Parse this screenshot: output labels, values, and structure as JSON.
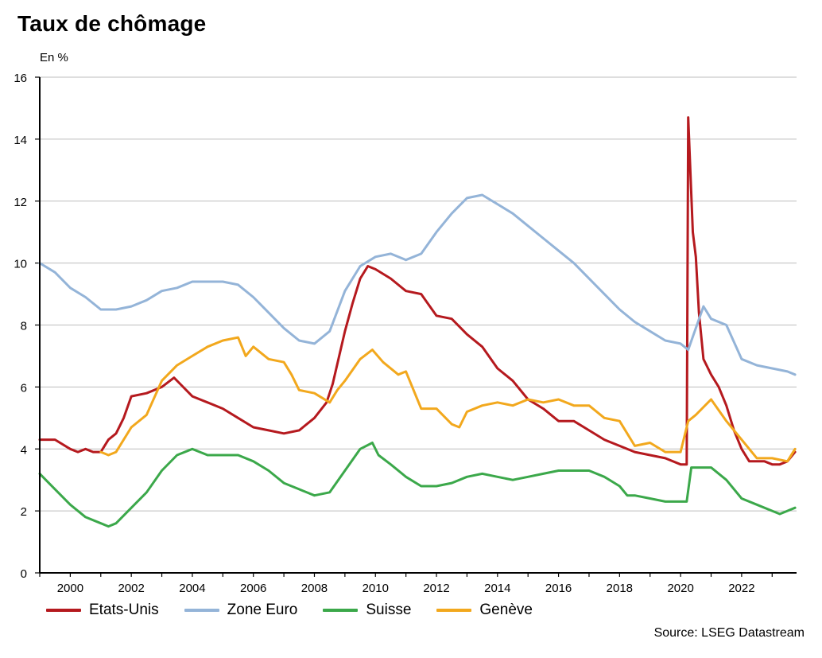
{
  "title": "Taux de chômage",
  "unit_label": "En %",
  "source": "Source: LSEG Datastream",
  "chart_data": {
    "type": "line",
    "title": "Taux de chômage",
    "ylabel": "En %",
    "xlim": [
      1999.0,
      2023.8
    ],
    "ylim": [
      0,
      16
    ],
    "y_ticks": [
      "0",
      "2",
      "4",
      "6",
      "8",
      "10",
      "12",
      "14",
      "16"
    ],
    "x_ticks": [
      "2000",
      "2002",
      "2004",
      "2006",
      "2008",
      "2010",
      "2012",
      "2014",
      "2016",
      "2018",
      "2020",
      "2022"
    ],
    "grid": "horizontal",
    "legend_position": "bottom",
    "series": [
      {
        "name": "Etats-Unis",
        "color": "#b5191e",
        "points": [
          [
            1999.0,
            4.3
          ],
          [
            1999.5,
            4.3
          ],
          [
            2000.0,
            4.0
          ],
          [
            2000.25,
            3.9
          ],
          [
            2000.5,
            4.0
          ],
          [
            2000.75,
            3.9
          ],
          [
            2001.0,
            3.9
          ],
          [
            2001.25,
            4.3
          ],
          [
            2001.5,
            4.5
          ],
          [
            2001.75,
            5.0
          ],
          [
            2002.0,
            5.7
          ],
          [
            2002.5,
            5.8
          ],
          [
            2003.0,
            6.0
          ],
          [
            2003.4,
            6.3
          ],
          [
            2003.6,
            6.1
          ],
          [
            2004.0,
            5.7
          ],
          [
            2004.5,
            5.5
          ],
          [
            2005.0,
            5.3
          ],
          [
            2005.5,
            5.0
          ],
          [
            2006.0,
            4.7
          ],
          [
            2006.5,
            4.6
          ],
          [
            2007.0,
            4.5
          ],
          [
            2007.5,
            4.6
          ],
          [
            2008.0,
            5.0
          ],
          [
            2008.4,
            5.5
          ],
          [
            2008.6,
            6.1
          ],
          [
            2009.0,
            7.8
          ],
          [
            2009.25,
            8.7
          ],
          [
            2009.5,
            9.5
          ],
          [
            2009.75,
            9.9
          ],
          [
            2010.0,
            9.8
          ],
          [
            2010.5,
            9.5
          ],
          [
            2011.0,
            9.1
          ],
          [
            2011.5,
            9.0
          ],
          [
            2012.0,
            8.3
          ],
          [
            2012.5,
            8.2
          ],
          [
            2013.0,
            7.7
          ],
          [
            2013.5,
            7.3
          ],
          [
            2014.0,
            6.6
          ],
          [
            2014.5,
            6.2
          ],
          [
            2015.0,
            5.6
          ],
          [
            2015.5,
            5.3
          ],
          [
            2016.0,
            4.9
          ],
          [
            2016.5,
            4.9
          ],
          [
            2017.0,
            4.6
          ],
          [
            2017.5,
            4.3
          ],
          [
            2018.0,
            4.1
          ],
          [
            2018.5,
            3.9
          ],
          [
            2019.0,
            3.8
          ],
          [
            2019.5,
            3.7
          ],
          [
            2020.0,
            3.5
          ],
          [
            2020.2,
            3.5
          ],
          [
            2020.25,
            14.7
          ],
          [
            2020.4,
            11.0
          ],
          [
            2020.5,
            10.2
          ],
          [
            2020.6,
            8.4
          ],
          [
            2020.75,
            6.9
          ],
          [
            2021.0,
            6.4
          ],
          [
            2021.25,
            6.0
          ],
          [
            2021.5,
            5.4
          ],
          [
            2021.75,
            4.6
          ],
          [
            2022.0,
            4.0
          ],
          [
            2022.25,
            3.6
          ],
          [
            2022.5,
            3.6
          ],
          [
            2022.75,
            3.6
          ],
          [
            2023.0,
            3.5
          ],
          [
            2023.25,
            3.5
          ],
          [
            2023.5,
            3.6
          ],
          [
            2023.75,
            3.9
          ]
        ]
      },
      {
        "name": "Zone Euro",
        "color": "#94b4d8",
        "points": [
          [
            1999.0,
            10.0
          ],
          [
            1999.5,
            9.7
          ],
          [
            2000.0,
            9.2
          ],
          [
            2000.5,
            8.9
          ],
          [
            2001.0,
            8.5
          ],
          [
            2001.5,
            8.5
          ],
          [
            2002.0,
            8.6
          ],
          [
            2002.5,
            8.8
          ],
          [
            2003.0,
            9.1
          ],
          [
            2003.5,
            9.2
          ],
          [
            2004.0,
            9.4
          ],
          [
            2004.5,
            9.4
          ],
          [
            2005.0,
            9.4
          ],
          [
            2005.5,
            9.3
          ],
          [
            2006.0,
            8.9
          ],
          [
            2006.5,
            8.4
          ],
          [
            2007.0,
            7.9
          ],
          [
            2007.5,
            7.5
          ],
          [
            2008.0,
            7.4
          ],
          [
            2008.5,
            7.8
          ],
          [
            2009.0,
            9.1
          ],
          [
            2009.5,
            9.9
          ],
          [
            2010.0,
            10.2
          ],
          [
            2010.5,
            10.3
          ],
          [
            2011.0,
            10.1
          ],
          [
            2011.5,
            10.3
          ],
          [
            2012.0,
            11.0
          ],
          [
            2012.5,
            11.6
          ],
          [
            2013.0,
            12.1
          ],
          [
            2013.5,
            12.2
          ],
          [
            2014.0,
            11.9
          ],
          [
            2014.5,
            11.6
          ],
          [
            2015.0,
            11.2
          ],
          [
            2015.5,
            10.8
          ],
          [
            2016.0,
            10.4
          ],
          [
            2016.5,
            10.0
          ],
          [
            2017.0,
            9.5
          ],
          [
            2017.5,
            9.0
          ],
          [
            2018.0,
            8.5
          ],
          [
            2018.5,
            8.1
          ],
          [
            2019.0,
            7.8
          ],
          [
            2019.5,
            7.5
          ],
          [
            2020.0,
            7.4
          ],
          [
            2020.25,
            7.2
          ],
          [
            2020.5,
            7.9
          ],
          [
            2020.75,
            8.6
          ],
          [
            2021.0,
            8.2
          ],
          [
            2021.5,
            8.0
          ],
          [
            2022.0,
            6.9
          ],
          [
            2022.5,
            6.7
          ],
          [
            2023.0,
            6.6
          ],
          [
            2023.5,
            6.5
          ],
          [
            2023.75,
            6.4
          ]
        ]
      },
      {
        "name": "Suisse",
        "color": "#3ba84a",
        "points": [
          [
            1999.0,
            3.2
          ],
          [
            1999.5,
            2.7
          ],
          [
            2000.0,
            2.2
          ],
          [
            2000.5,
            1.8
          ],
          [
            2001.0,
            1.6
          ],
          [
            2001.25,
            1.5
          ],
          [
            2001.5,
            1.6
          ],
          [
            2002.0,
            2.1
          ],
          [
            2002.5,
            2.6
          ],
          [
            2003.0,
            3.3
          ],
          [
            2003.5,
            3.8
          ],
          [
            2004.0,
            4.0
          ],
          [
            2004.5,
            3.8
          ],
          [
            2005.0,
            3.8
          ],
          [
            2005.5,
            3.8
          ],
          [
            2006.0,
            3.6
          ],
          [
            2006.5,
            3.3
          ],
          [
            2007.0,
            2.9
          ],
          [
            2007.5,
            2.7
          ],
          [
            2008.0,
            2.5
          ],
          [
            2008.5,
            2.6
          ],
          [
            2009.0,
            3.3
          ],
          [
            2009.5,
            4.0
          ],
          [
            2009.9,
            4.2
          ],
          [
            2010.1,
            3.8
          ],
          [
            2010.5,
            3.5
          ],
          [
            2011.0,
            3.1
          ],
          [
            2011.5,
            2.8
          ],
          [
            2012.0,
            2.8
          ],
          [
            2012.5,
            2.9
          ],
          [
            2013.0,
            3.1
          ],
          [
            2013.5,
            3.2
          ],
          [
            2014.0,
            3.1
          ],
          [
            2014.5,
            3.0
          ],
          [
            2015.0,
            3.1
          ],
          [
            2015.5,
            3.2
          ],
          [
            2016.0,
            3.3
          ],
          [
            2016.5,
            3.3
          ],
          [
            2017.0,
            3.3
          ],
          [
            2017.5,
            3.1
          ],
          [
            2018.0,
            2.8
          ],
          [
            2018.25,
            2.5
          ],
          [
            2018.5,
            2.5
          ],
          [
            2019.0,
            2.4
          ],
          [
            2019.5,
            2.3
          ],
          [
            2020.0,
            2.3
          ],
          [
            2020.2,
            2.3
          ],
          [
            2020.35,
            3.4
          ],
          [
            2020.75,
            3.4
          ],
          [
            2021.0,
            3.4
          ],
          [
            2021.5,
            3.0
          ],
          [
            2022.0,
            2.4
          ],
          [
            2022.5,
            2.2
          ],
          [
            2023.0,
            2.0
          ],
          [
            2023.25,
            1.9
          ],
          [
            2023.5,
            2.0
          ],
          [
            2023.75,
            2.1
          ]
        ]
      },
      {
        "name": "Genève",
        "color": "#f2a81d",
        "points": [
          [
            2001.0,
            3.9
          ],
          [
            2001.25,
            3.8
          ],
          [
            2001.5,
            3.9
          ],
          [
            2002.0,
            4.7
          ],
          [
            2002.5,
            5.1
          ],
          [
            2003.0,
            6.2
          ],
          [
            2003.5,
            6.7
          ],
          [
            2004.0,
            7.0
          ],
          [
            2004.5,
            7.3
          ],
          [
            2005.0,
            7.5
          ],
          [
            2005.5,
            7.6
          ],
          [
            2005.75,
            7.0
          ],
          [
            2006.0,
            7.3
          ],
          [
            2006.5,
            6.9
          ],
          [
            2007.0,
            6.8
          ],
          [
            2007.25,
            6.4
          ],
          [
            2007.5,
            5.9
          ],
          [
            2008.0,
            5.8
          ],
          [
            2008.5,
            5.5
          ],
          [
            2008.75,
            5.9
          ],
          [
            2009.0,
            6.2
          ],
          [
            2009.5,
            6.9
          ],
          [
            2009.9,
            7.2
          ],
          [
            2010.25,
            6.8
          ],
          [
            2010.75,
            6.4
          ],
          [
            2011.0,
            6.5
          ],
          [
            2011.5,
            5.3
          ],
          [
            2012.0,
            5.3
          ],
          [
            2012.5,
            4.8
          ],
          [
            2012.75,
            4.7
          ],
          [
            2013.0,
            5.2
          ],
          [
            2013.5,
            5.4
          ],
          [
            2014.0,
            5.5
          ],
          [
            2014.5,
            5.4
          ],
          [
            2015.0,
            5.6
          ],
          [
            2015.5,
            5.5
          ],
          [
            2016.0,
            5.6
          ],
          [
            2016.5,
            5.4
          ],
          [
            2017.0,
            5.4
          ],
          [
            2017.5,
            5.0
          ],
          [
            2018.0,
            4.9
          ],
          [
            2018.5,
            4.1
          ],
          [
            2019.0,
            4.2
          ],
          [
            2019.5,
            3.9
          ],
          [
            2020.0,
            3.9
          ],
          [
            2020.25,
            4.9
          ],
          [
            2020.5,
            5.1
          ],
          [
            2021.0,
            5.6
          ],
          [
            2021.5,
            4.9
          ],
          [
            2022.0,
            4.3
          ],
          [
            2022.5,
            3.7
          ],
          [
            2023.0,
            3.7
          ],
          [
            2023.5,
            3.6
          ],
          [
            2023.75,
            4.0
          ]
        ]
      }
    ]
  }
}
